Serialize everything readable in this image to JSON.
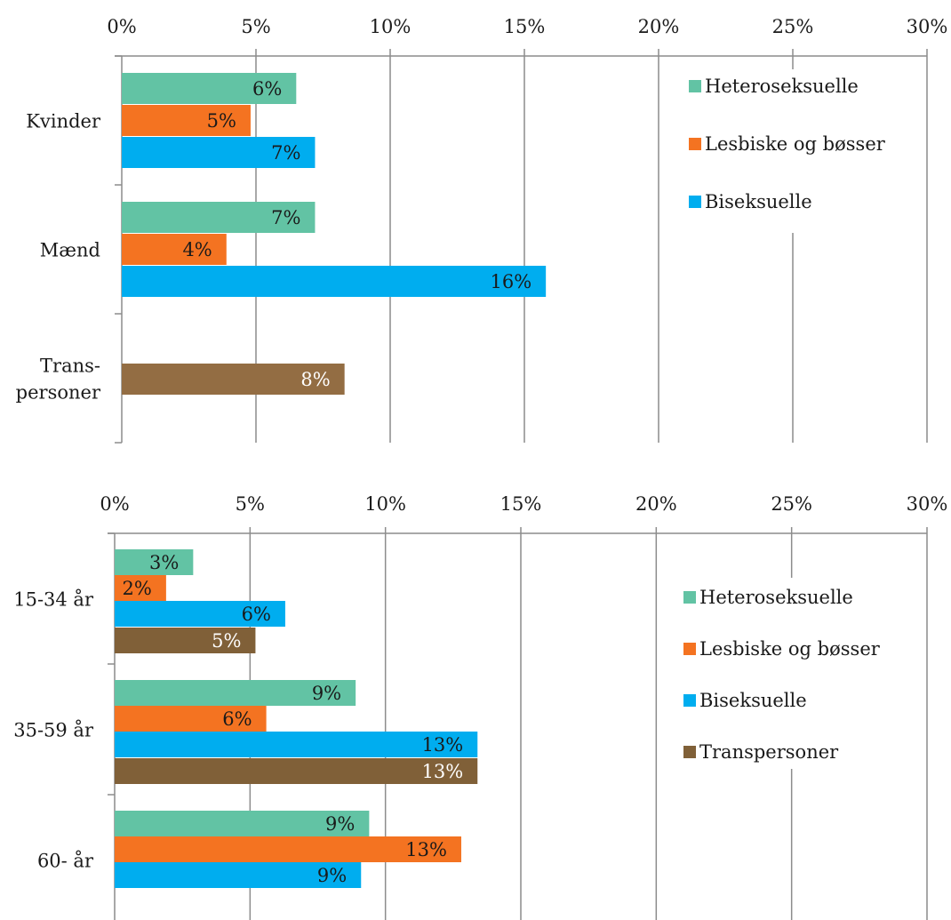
{
  "chart_data": [
    {
      "type": "bar",
      "orientation": "horizontal",
      "categories": [
        "Kvinder",
        "Mænd",
        "Trans-\npersoner"
      ],
      "series": [
        {
          "name": "Heteroseksuelle",
          "color": "#62c3a4",
          "values": [
            6.5,
            7.2,
            null
          ],
          "labels": [
            "6%",
            "7%",
            ""
          ]
        },
        {
          "name": "Lesbiske og bøsser",
          "color": "#f47321",
          "values": [
            4.8,
            3.9,
            null
          ],
          "labels": [
            "5%",
            "4%",
            ""
          ]
        },
        {
          "name": "Biseksuelle",
          "color": "#00adef",
          "values": [
            7.2,
            15.8,
            null
          ],
          "labels": [
            "7%",
            "16%",
            ""
          ]
        },
        {
          "name": "Transpersoner",
          "color": "#936d43",
          "values": [
            null,
            null,
            8.3
          ],
          "labels": [
            "",
            "",
            "8%"
          ]
        }
      ],
      "legend": [
        "Heteroseksuelle",
        "Lesbiske og bøsser",
        "Biseksuelle"
      ],
      "x_ticks": [
        "0%",
        "5%",
        "10%",
        "15%",
        "20%",
        "25%",
        "30%"
      ],
      "xlim": [
        0,
        30
      ],
      "grid": true,
      "legend_position": "top-right"
    },
    {
      "type": "bar",
      "orientation": "horizontal",
      "categories": [
        "15-34 år",
        "35-59 år",
        "60- år"
      ],
      "series": [
        {
          "name": "Heteroseksuelle",
          "color": "#62c3a4",
          "values": [
            2.9,
            8.9,
            9.4
          ],
          "labels": [
            "3%",
            "9%",
            "9%"
          ]
        },
        {
          "name": "Lesbiske og bøsser",
          "color": "#f47321",
          "values": [
            1.9,
            5.6,
            12.8
          ],
          "labels": [
            "2%",
            "6%",
            "13%"
          ]
        },
        {
          "name": "Biseksuelle",
          "color": "#00adef",
          "values": [
            6.3,
            13.4,
            9.1
          ],
          "labels": [
            "6%",
            "13%",
            "9%"
          ]
        },
        {
          "name": "Transpersoner",
          "color": "#806038",
          "values": [
            5.2,
            13.4,
            null
          ],
          "labels": [
            "5%",
            "13%",
            ""
          ]
        }
      ],
      "legend": [
        "Heteroseksuelle",
        "Lesbiske og bøsser",
        "Biseksuelle",
        "Transpersoner"
      ],
      "x_ticks": [
        "0%",
        "5%",
        "10%",
        "15%",
        "20%",
        "25%",
        "30%"
      ],
      "xlim": [
        0,
        30
      ],
      "grid": true,
      "legend_position": "right"
    }
  ]
}
